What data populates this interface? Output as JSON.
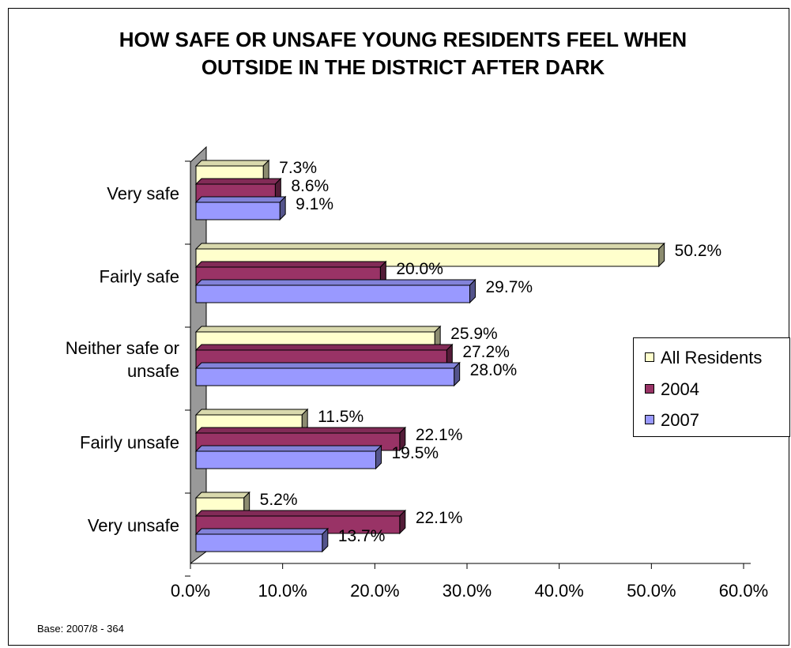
{
  "chart_data": {
    "type": "bar",
    "orientation": "horizontal",
    "title": "HOW SAFE OR UNSAFE YOUNG RESIDENTS FEEL WHEN OUTSIDE IN THE DISTRICT AFTER DARK",
    "categories": [
      "Very safe",
      "Fairly safe",
      "Neither safe or unsafe",
      "Fairly unsafe",
      "Very unsafe"
    ],
    "category_lines": [
      [
        "Very safe"
      ],
      [
        "Fairly safe"
      ],
      [
        "Neither safe or",
        "unsafe"
      ],
      [
        "Fairly unsafe"
      ],
      [
        "Very unsafe"
      ]
    ],
    "series": [
      {
        "name": "All Residents",
        "color": "#ffffcc",
        "values": [
          7.3,
          50.2,
          25.9,
          11.5,
          5.2
        ],
        "labels": [
          "7.3%",
          "50.2%",
          "25.9%",
          "11.5%",
          "5.2%"
        ]
      },
      {
        "name": "2004",
        "color": "#993366",
        "values": [
          8.6,
          20.0,
          27.2,
          22.1,
          22.1
        ],
        "labels": [
          "8.6%",
          "20.0%",
          "27.2%",
          "22.1%",
          "22.1%"
        ]
      },
      {
        "name": "2007",
        "color": "#9999ff",
        "values": [
          9.1,
          29.7,
          28.0,
          19.5,
          13.7
        ],
        "labels": [
          "9.1%",
          "29.7%",
          "28.0%",
          "19.5%",
          "13.7%"
        ]
      }
    ],
    "xlim": [
      0,
      60
    ],
    "xticks": [
      0,
      10,
      20,
      30,
      40,
      50,
      60
    ],
    "xtick_labels": [
      "0.0%",
      "10.0%",
      "20.0%",
      "30.0%",
      "40.0%",
      "50.0%",
      "60.0%"
    ],
    "xlabel": "",
    "ylabel": "",
    "grid": false,
    "legend_position": "right",
    "wall_color": "#999999"
  },
  "footnote": "Base: 2007/8 - 364"
}
